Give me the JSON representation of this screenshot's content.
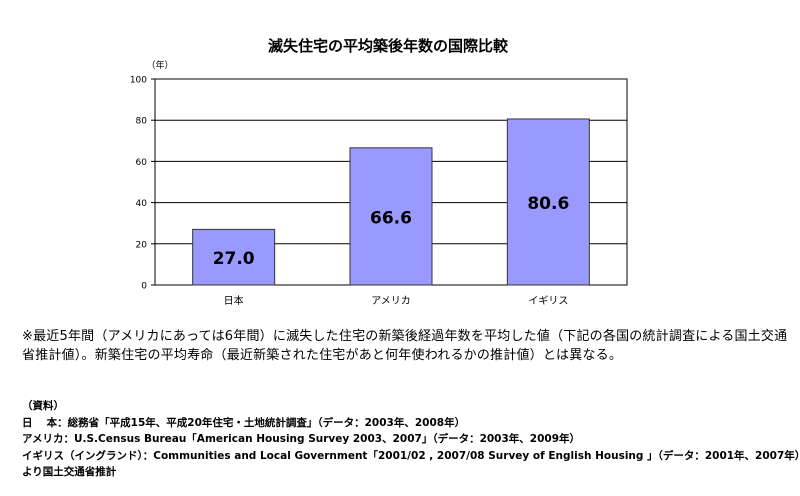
{
  "chart_data": {
    "type": "bar",
    "title": "滅失住宅の平均築後年数の国際比較",
    "unit_label": "（年）",
    "categories": [
      "日本",
      "アメリカ",
      "イギリス"
    ],
    "values": [
      27.0,
      66.6,
      80.6
    ],
    "value_labels": [
      "27.0",
      "66.6",
      "80.6"
    ],
    "ylim": [
      0,
      100
    ],
    "yticks": [
      0,
      20,
      40,
      60,
      80,
      100
    ],
    "grid": true,
    "bar_color": "#9999ff",
    "bar_stroke": "#333333"
  },
  "note": "※最近5年間（アメリカにあっては6年間）に滅失した住宅の新築後経過年数を平均した値（下記の各国の統計調査による国土交通省推計値）。新築住宅の平均寿命（最近新築された住宅があと何年使われるかの推計値）とは異なる。",
  "sources": {
    "heading": "（資料）",
    "lines": [
      "日　 本：総務省「平成15年、平成20年住宅・土地統計調査」（データ：2003年、2008年）",
      "アメリカ：U.S.Census Bureau「American Housing Survey 2003、2007」（データ：2003年、2009年）",
      "イギリス（イングランド）：Communities and Local Government「2001/02 , 2007/08 Survey of English Housing 」（データ：2001年、2007年）",
      "より国土交通省推計"
    ]
  }
}
